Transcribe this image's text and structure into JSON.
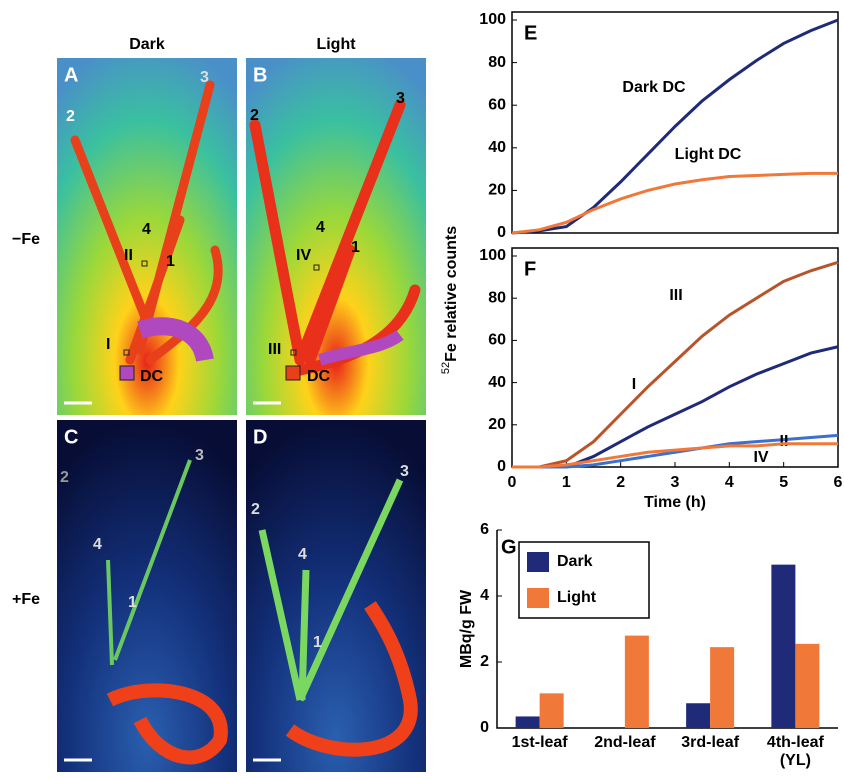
{
  "panels": {
    "column_headers": [
      "Dark",
      "Light"
    ],
    "row_labels": [
      "−Fe",
      "+Fe"
    ],
    "images": [
      {
        "letter": "A",
        "labels": [
          "2",
          "3",
          "4",
          "II",
          "1",
          "I",
          "DC"
        ]
      },
      {
        "letter": "B",
        "labels": [
          "2",
          "3",
          "4",
          "IV",
          "1",
          "III",
          "DC"
        ]
      },
      {
        "letter": "C",
        "labels": [
          "2",
          "3",
          "4",
          "1"
        ]
      },
      {
        "letter": "D",
        "labels": [
          "2",
          "3",
          "4",
          "1"
        ]
      }
    ]
  },
  "chart_data": [
    {
      "type": "line",
      "panel_label": "E",
      "x": [
        0,
        0.5,
        1,
        1.5,
        2,
        2.5,
        3,
        3.5,
        4,
        4.5,
        5,
        5.5,
        6
      ],
      "series": [
        {
          "name": "Dark DC",
          "color": "#1f2a78",
          "values": [
            0,
            1,
            3,
            12,
            24,
            37,
            50,
            62,
            72,
            81,
            89,
            95,
            100
          ]
        },
        {
          "name": "Light DC",
          "color": "#f07838",
          "values": [
            0,
            1.5,
            5,
            11,
            16,
            20,
            23,
            25,
            26.5,
            27,
            27.5,
            28,
            28
          ]
        }
      ],
      "xlim": [
        0,
        6
      ],
      "ylim": [
        0,
        100
      ],
      "yticks": [
        0,
        20,
        40,
        60,
        80,
        100
      ]
    },
    {
      "type": "line",
      "panel_label": "F",
      "ylabel_superscript": "52",
      "ylabel": "Fe relative counts",
      "xlabel": "Time (h)",
      "x": [
        0,
        0.5,
        1,
        1.5,
        2,
        2.5,
        3,
        3.5,
        4,
        4.5,
        5,
        5.5,
        6
      ],
      "series": [
        {
          "name": "III",
          "color": "#b8532a",
          "values": [
            0,
            0,
            3,
            12,
            25,
            38,
            50,
            62,
            72,
            80,
            88,
            93,
            97
          ]
        },
        {
          "name": "I",
          "color": "#1f2a78",
          "values": [
            0,
            0,
            0,
            5,
            12,
            19,
            25,
            31,
            38,
            44,
            49,
            54,
            57
          ]
        },
        {
          "name": "II",
          "color": "#3b6fd0",
          "values": [
            0,
            0,
            0,
            1,
            3,
            5,
            7,
            9,
            11,
            12,
            13,
            14,
            15
          ]
        },
        {
          "name": "IV",
          "color": "#f07838",
          "values": [
            0,
            0,
            1,
            3,
            5,
            7,
            8,
            9,
            10,
            10,
            11,
            11,
            11
          ]
        }
      ],
      "xlim": [
        0,
        6
      ],
      "xticks": [
        0,
        1,
        2,
        3,
        4,
        5,
        6
      ],
      "ylim": [
        0,
        100
      ],
      "yticks": [
        0,
        20,
        40,
        60,
        80,
        100
      ]
    },
    {
      "type": "bar",
      "panel_label": "G",
      "ylabel": "MBq/g FW",
      "categories": [
        "1st-leaf",
        "2nd-leaf",
        "3rd-leaf",
        "4th-leaf (YL)"
      ],
      "series": [
        {
          "name": "Dark",
          "color": "#1f2a78",
          "values": [
            0.35,
            0,
            0.75,
            4.95
          ]
        },
        {
          "name": "Light",
          "color": "#f07838",
          "values": [
            1.05,
            2.8,
            2.45,
            2.55
          ]
        }
      ],
      "ylim": [
        0,
        6
      ],
      "yticks": [
        0,
        2,
        4,
        6
      ]
    }
  ]
}
